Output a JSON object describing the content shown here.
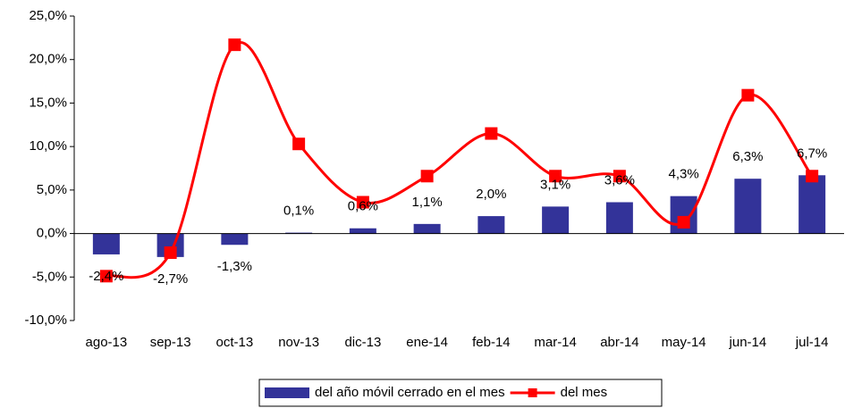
{
  "chart_data": {
    "type": "bar",
    "categories": [
      "ago-13",
      "sep-13",
      "oct-13",
      "nov-13",
      "dic-13",
      "ene-14",
      "feb-14",
      "mar-14",
      "abr-14",
      "may-14",
      "jun-14",
      "jul-14"
    ],
    "series": [
      {
        "name": "del año móvil cerrado en el mes",
        "type": "bar",
        "color": "#333399",
        "values": [
          -2.4,
          -2.7,
          -1.3,
          0.1,
          0.6,
          1.1,
          2.0,
          3.1,
          3.6,
          4.3,
          6.3,
          6.7
        ],
        "value_labels": [
          "-2,4%",
          "-2,7%",
          "-1,3%",
          "0,1%",
          "0,6%",
          "1,1%",
          "2,0%",
          "3,1%",
          "3,6%",
          "4,3%",
          "6,3%",
          "6,7%"
        ]
      },
      {
        "name": "del mes",
        "type": "line",
        "color": "#ff0000",
        "values": [
          -4.9,
          -2.2,
          21.7,
          10.3,
          3.6,
          6.6,
          11.5,
          6.6,
          6.6,
          1.3,
          15.9,
          6.6
        ]
      }
    ],
    "ylim": [
      -10,
      25
    ],
    "yticks": [
      {
        "value": -10,
        "label": "-10,0%"
      },
      {
        "value": -5,
        "label": "-5,0%"
      },
      {
        "value": 0,
        "label": "0,0%"
      },
      {
        "value": 5,
        "label": "5,0%"
      },
      {
        "value": 10,
        "label": "10,0%"
      },
      {
        "value": 15,
        "label": "15,0%"
      },
      {
        "value": 20,
        "label": "20,0%"
      },
      {
        "value": 25,
        "label": "25,0%"
      }
    ],
    "legend": "bottom"
  }
}
